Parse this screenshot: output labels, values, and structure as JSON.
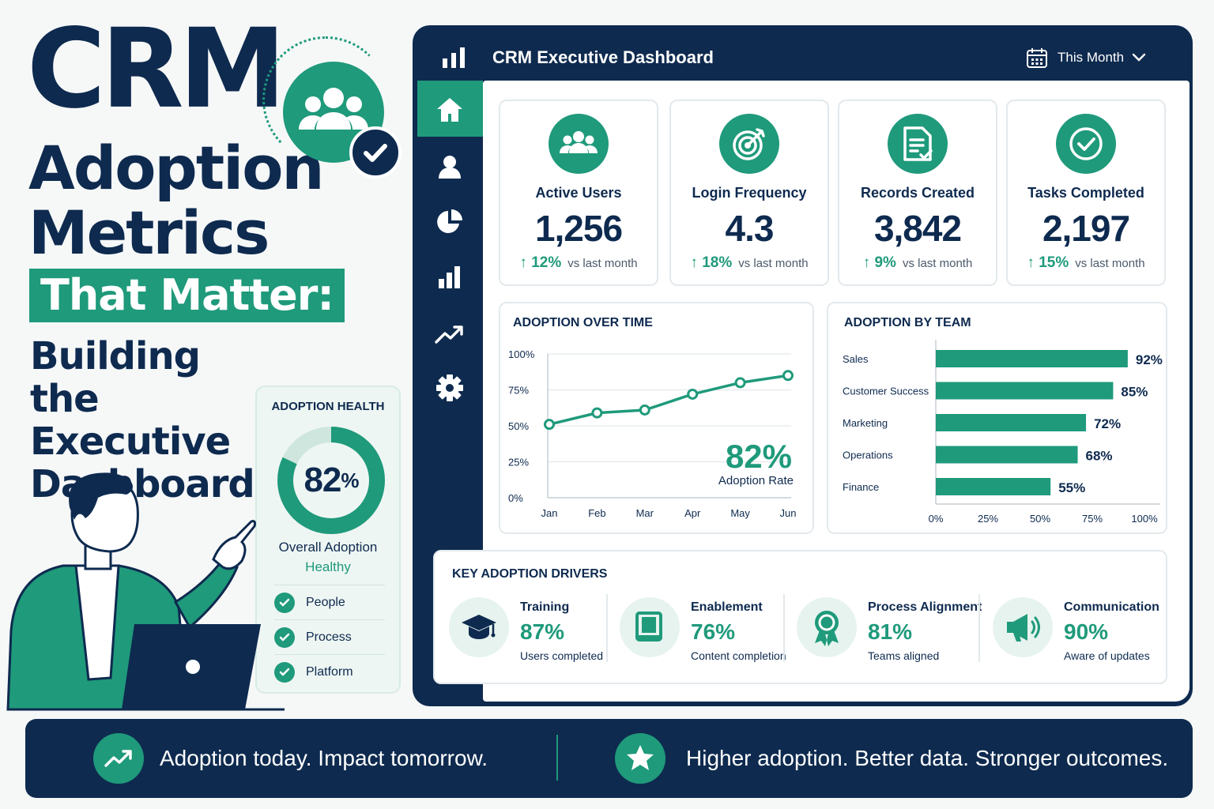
{
  "hero": {
    "title_line1": "CRM",
    "title_line2": "Adoption",
    "title_line3": "Metrics",
    "highlight": "That Matter:",
    "subtitle": "Building the Executive Dashboard"
  },
  "health": {
    "title": "ADOPTION HEALTH",
    "value": "82",
    "value_unit": "%",
    "value_fraction": 0.82,
    "label": "Overall Adoption",
    "status": "Healthy",
    "items": [
      {
        "label": "People"
      },
      {
        "label": "Process"
      },
      {
        "label": "Platform"
      }
    ]
  },
  "dashboard": {
    "title": "CRM Executive Dashboard",
    "period": "This Month",
    "sidebar": [
      "home-icon",
      "user-icon",
      "pie-chart-icon",
      "bar-chart-icon",
      "trend-icon",
      "gear-icon"
    ],
    "kpis": [
      {
        "label": "Active Users",
        "value": "1,256",
        "delta": "12%",
        "compare": "vs last month",
        "icon": "users-icon"
      },
      {
        "label": "Login Frequency",
        "value": "4.3",
        "delta": "18%",
        "compare": "vs last month",
        "icon": "target-icon"
      },
      {
        "label": "Records Created",
        "value": "3,842",
        "delta": "9%",
        "compare": "vs last month",
        "icon": "document-icon"
      },
      {
        "label": "Tasks Completed",
        "value": "2,197",
        "delta": "15%",
        "compare": "vs last month",
        "icon": "check-circle-icon"
      }
    ],
    "over_time": {
      "title": "ADOPTION OVER TIME",
      "rate_value": "82%",
      "rate_label": "Adoption Rate"
    },
    "by_team": {
      "title": "ADOPTION BY TEAM"
    },
    "drivers": {
      "title": "KEY ADOPTION DRIVERS",
      "items": [
        {
          "name": "Training",
          "value": "87%",
          "sub": "Users completed",
          "icon": "graduation-cap-icon"
        },
        {
          "name": "Enablement",
          "value": "76%",
          "sub": "Content completion",
          "icon": "book-icon"
        },
        {
          "name": "Process Alignment",
          "value": "81%",
          "sub": "Teams aligned",
          "icon": "award-icon"
        },
        {
          "name": "Communication",
          "value": "90%",
          "sub": "Aware of updates",
          "icon": "megaphone-icon"
        }
      ]
    }
  },
  "footer": {
    "left_text": "Adoption today. Impact tomorrow.",
    "right_text": "Higher adoption. Better data. Stronger outcomes."
  },
  "colors": {
    "navy": "#0e2a4f",
    "green": "#1f9a7b",
    "light_green": "#e6f3ef"
  },
  "chart_data": [
    {
      "type": "line",
      "title": "ADOPTION OVER TIME",
      "categories": [
        "Jan",
        "Feb",
        "Mar",
        "Apr",
        "May",
        "Jun"
      ],
      "values": [
        51,
        59,
        61,
        72,
        80,
        85
      ],
      "y_ticks": [
        "100%",
        "75%",
        "50%",
        "25%",
        "0%"
      ],
      "ylim": [
        0,
        100
      ],
      "grid": true
    },
    {
      "type": "bar",
      "orientation": "horizontal",
      "title": "ADOPTION BY TEAM",
      "categories": [
        "Sales",
        "Customer Success",
        "Marketing",
        "Operations",
        "Finance"
      ],
      "values": [
        92,
        85,
        72,
        68,
        55
      ],
      "value_labels": [
        "92%",
        "85%",
        "72%",
        "68%",
        "55%"
      ],
      "x_ticks": [
        "0%",
        "25%",
        "50%",
        "75%",
        "100%"
      ],
      "xlim": [
        0,
        100
      ]
    }
  ]
}
